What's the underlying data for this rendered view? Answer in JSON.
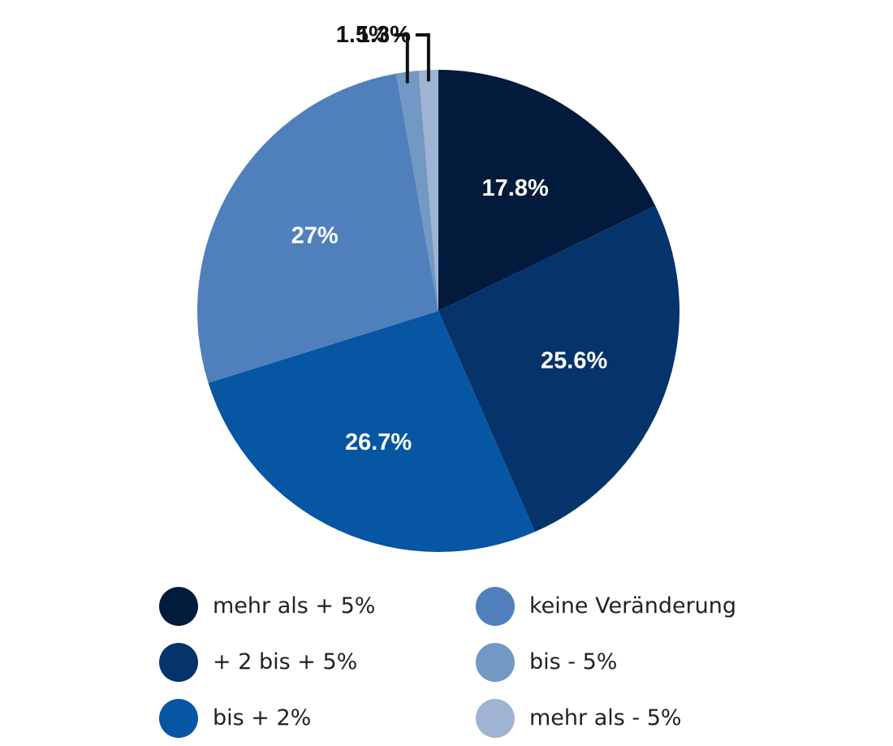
{
  "chart_data": {
    "type": "pie",
    "slices": [
      {
        "name": "mehr als + 5%",
        "value": 17.8,
        "label": "17.8%",
        "color": "#021a3c"
      },
      {
        "name": "+ 2 bis + 5%",
        "value": 25.6,
        "label": "25.6%",
        "color": "#05336b"
      },
      {
        "name": "bis + 2%",
        "value": 26.7,
        "label": "26.7%",
        "color": "#0656a3"
      },
      {
        "name": "keine Veränderung",
        "value": 27,
        "label": "27%",
        "color": "#5080bc"
      },
      {
        "name": "bis - 5%",
        "value": 1.5,
        "label": "1.5%",
        "color": "#7298c4"
      },
      {
        "name": "mehr als - 5%",
        "value": 1.3,
        "label": "1.3%",
        "color": "#9fb3d3"
      }
    ],
    "start": "12 o'clock",
    "direction": "clockwise",
    "legend": {
      "placement": "bottom",
      "items": [
        "mehr als + 5%",
        "keine Veränderung",
        "+ 2 bis + 5%",
        "bis - 5%",
        "bis + 2%",
        "mehr als - 5%"
      ]
    }
  }
}
